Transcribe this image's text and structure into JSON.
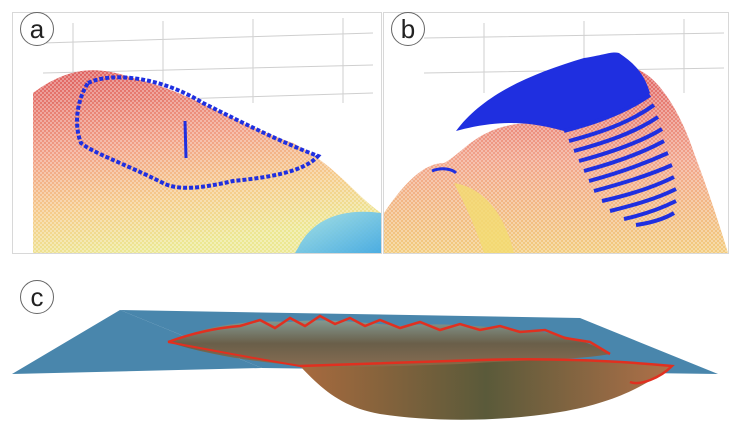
{
  "panels": [
    {
      "id": "a",
      "label": "a"
    },
    {
      "id": "b",
      "label": "b"
    },
    {
      "id": "c",
      "label": "c"
    }
  ],
  "colors": {
    "mesh_red": "#e0463a",
    "mesh_orange": "#f0a060",
    "mesh_yellow": "#eed86a",
    "mesh_cyan": "#6fd3e8",
    "boundary_blue": "#1f2fe0",
    "plane_blue": "#3f7fa8",
    "rim_red": "#e03020",
    "terrain_brown": "#6d5a3e",
    "grid_gray": "#c8c8c8"
  }
}
